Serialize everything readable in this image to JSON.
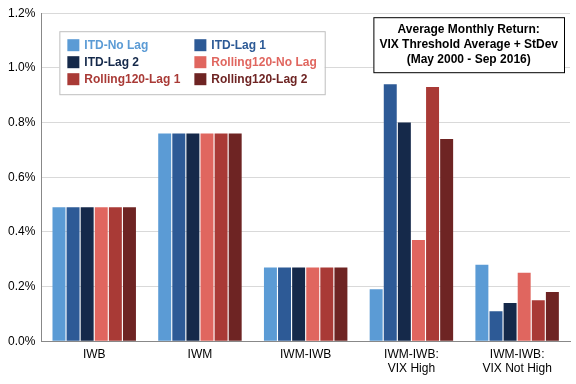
{
  "chart_data": {
    "type": "bar",
    "title": [
      "Average Monthly Return:",
      "VIX Threshold Average + StDev",
      "(May 2000 - Sep 2016)"
    ],
    "categories": [
      "IWB",
      "IWM",
      "IWM-IWB",
      "IWM-IWB: VIX High",
      "IWM-IWB: VIX Not High"
    ],
    "series": [
      {
        "name": "ITD-No Lag",
        "color": "#5b9bd5",
        "values": [
          0.49,
          0.76,
          0.27,
          0.19,
          0.28
        ]
      },
      {
        "name": "ITD-Lag 1",
        "color": "#2d5a96",
        "values": [
          0.49,
          0.76,
          0.27,
          0.94,
          0.11
        ]
      },
      {
        "name": "ITD-Lag 2",
        "color": "#15294a",
        "values": [
          0.49,
          0.76,
          0.27,
          0.8,
          0.14
        ]
      },
      {
        "name": "Rolling120-No Lag",
        "color": "#e0665f",
        "values": [
          0.49,
          0.76,
          0.27,
          0.37,
          0.25
        ]
      },
      {
        "name": "Rolling120-Lag 1",
        "color": "#a93a36",
        "values": [
          0.49,
          0.76,
          0.27,
          0.93,
          0.15
        ]
      },
      {
        "name": "Rolling120-Lag 2",
        "color": "#6e2423",
        "values": [
          0.49,
          0.76,
          0.27,
          0.74,
          0.18
        ]
      }
    ],
    "ylim": [
      0,
      1.2
    ],
    "yticks": [
      {
        "value": 0,
        "label": "0.0%"
      },
      {
        "value": 0.2,
        "label": "0.2%"
      },
      {
        "value": 0.4,
        "label": "0.4%"
      },
      {
        "value": 0.6,
        "label": "0.6%"
      },
      {
        "value": 0.8,
        "label": "0.8%"
      },
      {
        "value": 1.0,
        "label": "1.0%"
      },
      {
        "value": 1.2,
        "label": "1.2%"
      }
    ],
    "grid": true,
    "legend": "upper left"
  }
}
